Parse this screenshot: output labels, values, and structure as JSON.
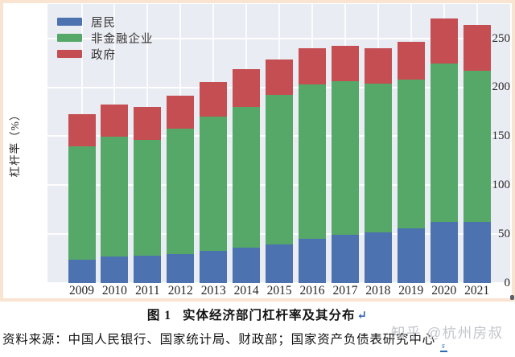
{
  "page": {
    "background": "#ffffff",
    "frame_color": "#f9e3d1"
  },
  "chart_data": {
    "type": "bar",
    "stacked": true,
    "categories": [
      "2009",
      "2010",
      "2011",
      "2012",
      "2013",
      "2014",
      "2015",
      "2016",
      "2017",
      "2018",
      "2019",
      "2020",
      "2021"
    ],
    "series": [
      {
        "name": "居民",
        "color": "#4c72b0",
        "values": [
          23.9,
          27.2,
          27.8,
          29.6,
          33.0,
          35.9,
          39.2,
          44.8,
          49.0,
          52.1,
          56.1,
          62.2,
          62.2
        ]
      },
      {
        "name": "非金融企业",
        "color": "#55a868",
        "values": [
          115.7,
          122.4,
          118.8,
          128.2,
          137.0,
          144.2,
          152.9,
          158.0,
          157.0,
          151.6,
          151.9,
          162.3,
          154.8
        ]
      },
      {
        "name": "政府",
        "color": "#c44e52",
        "values": [
          32.6,
          33.0,
          33.0,
          34.0,
          35.4,
          38.0,
          36.1,
          36.7,
          36.2,
          36.4,
          38.5,
          45.6,
          46.8
        ]
      }
    ],
    "totals": [
      172.2,
      182.6,
      179.6,
      191.8,
      205.4,
      218.1,
      228.2,
      239.5,
      242.2,
      240.1,
      246.5,
      270.1,
      263.8
    ],
    "title": "",
    "xlabel": "",
    "ylabel": "杠杆率（%）",
    "yticks": [
      0,
      50,
      100,
      150,
      200,
      250
    ],
    "ylim": [
      0,
      285
    ],
    "grid": true,
    "gridline_color": "#ffffff",
    "plot_background": "#eaecf3",
    "legend_position": "upper-left"
  },
  "caption": {
    "figure_label": "图 1",
    "title": "实体经济部门杠杆率及其分布",
    "return_mark": "↵"
  },
  "source": {
    "prefix": "资料来源：",
    "text": "中国人民银行、国家统计局、财政部；国家资产负债表研究中心",
    "edit_mark": "s"
  },
  "watermark": {
    "text": "知乎 @杭州房叔"
  }
}
